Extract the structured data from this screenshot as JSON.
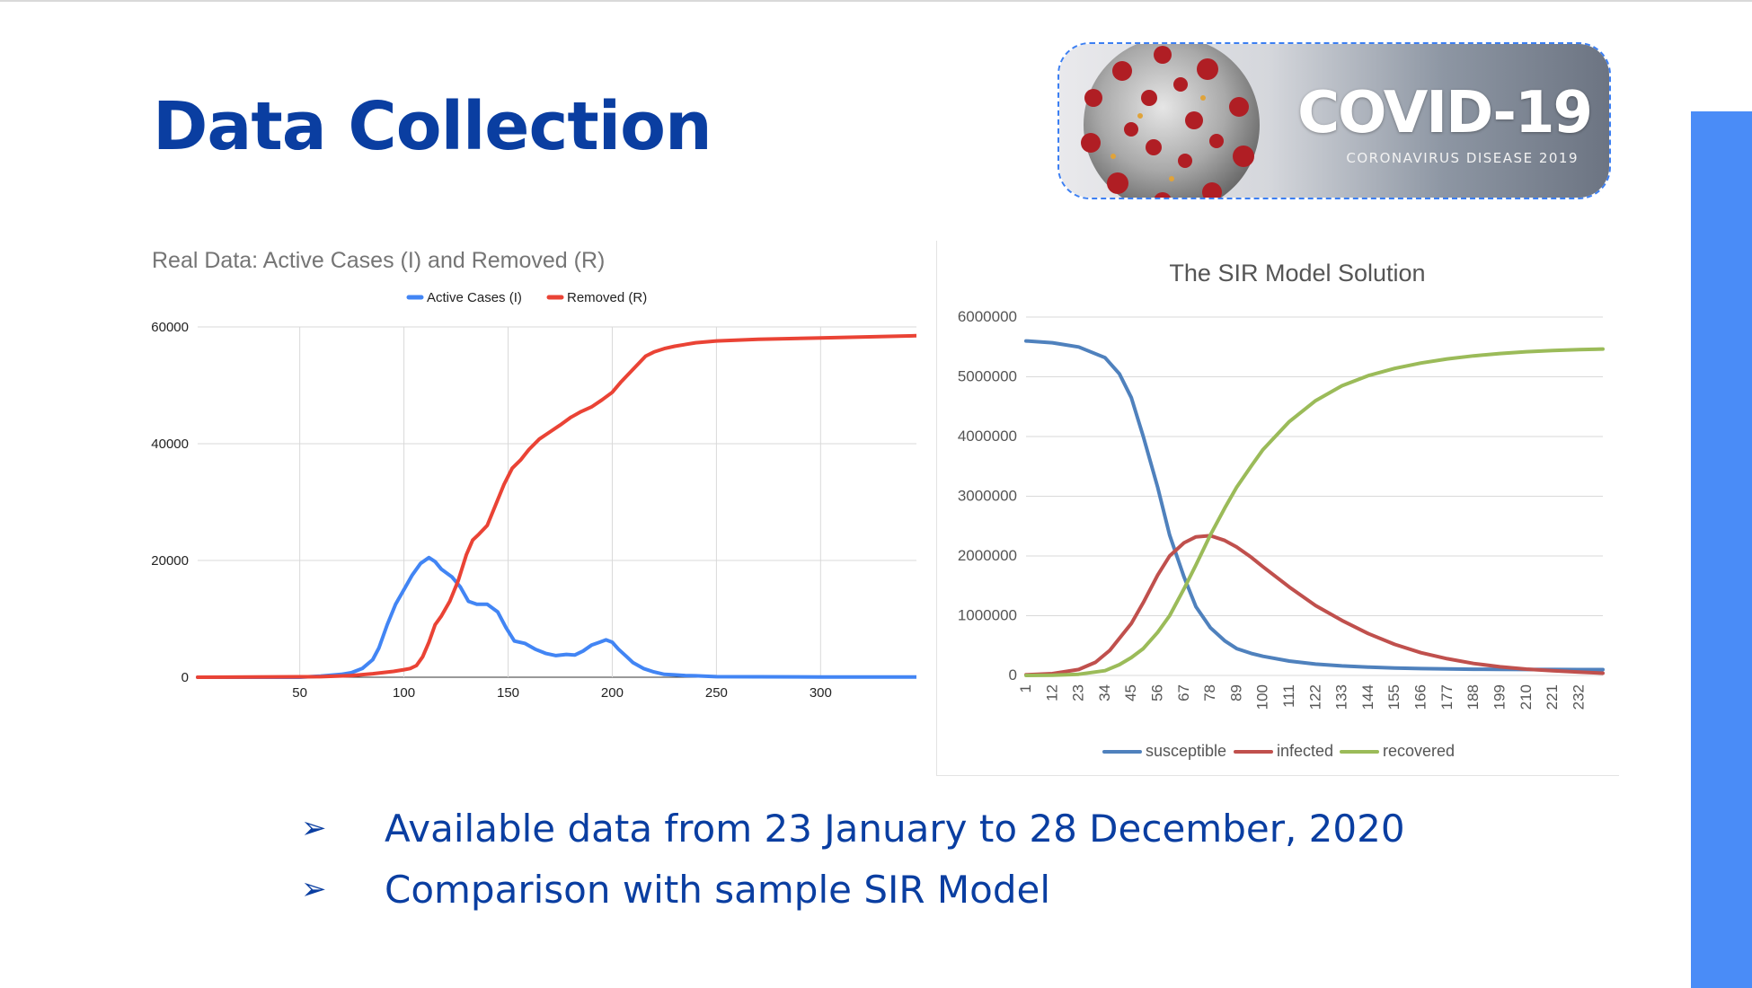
{
  "slide": {
    "title": "Data Collection",
    "banner": {
      "title": "COVID-19",
      "subtitle": "CORONAVIRUS DISEASE 2019"
    },
    "bullets": [
      {
        "marker": "➢",
        "text": "Available data from 23 January to 28 December, 2020"
      },
      {
        "marker": "➢",
        "text": "Comparison with sample SIR Model"
      }
    ],
    "colors": {
      "title": "#0a3ea1",
      "accent_bar": "#4a8cf7",
      "banner_border": "#3c7ff2"
    }
  },
  "chart_data": [
    {
      "type": "line",
      "title": "Real Data: Active Cases (I) and Removed (R)",
      "xlabel": "",
      "ylabel": "",
      "xlim": [
        1,
        346
      ],
      "ylim": [
        0,
        60000
      ],
      "xticks": [
        50,
        100,
        150,
        200,
        250,
        300
      ],
      "yticks": [
        0,
        20000,
        40000,
        60000
      ],
      "grid": true,
      "legend": "top-center",
      "series": [
        {
          "name": "Active Cases (I)",
          "color": "#4285f4",
          "points": [
            [
              1,
              0
            ],
            [
              50,
              0
            ],
            [
              60,
              200
            ],
            [
              70,
              500
            ],
            [
              75,
              800
            ],
            [
              80,
              1500
            ],
            [
              85,
              3000
            ],
            [
              88,
              5000
            ],
            [
              92,
              9000
            ],
            [
              96,
              12500
            ],
            [
              100,
              15000
            ],
            [
              104,
              17500
            ],
            [
              108,
              19500
            ],
            [
              112,
              20500
            ],
            [
              115,
              19800
            ],
            [
              118,
              18500
            ],
            [
              123,
              17200
            ],
            [
              127,
              15500
            ],
            [
              131,
              13000
            ],
            [
              135,
              12500
            ],
            [
              140,
              12500
            ],
            [
              145,
              11200
            ],
            [
              149,
              8500
            ],
            [
              153,
              6200
            ],
            [
              158,
              5800
            ],
            [
              163,
              4800
            ],
            [
              168,
              4100
            ],
            [
              173,
              3700
            ],
            [
              178,
              3900
            ],
            [
              182,
              3800
            ],
            [
              186,
              4500
            ],
            [
              190,
              5500
            ],
            [
              194,
              6000
            ],
            [
              197,
              6400
            ],
            [
              200,
              6000
            ],
            [
              203,
              4800
            ],
            [
              207,
              3500
            ],
            [
              210,
              2500
            ],
            [
              215,
              1500
            ],
            [
              220,
              900
            ],
            [
              225,
              500
            ],
            [
              230,
              400
            ],
            [
              235,
              300
            ],
            [
              240,
              250
            ],
            [
              250,
              100
            ],
            [
              300,
              50
            ],
            [
              346,
              50
            ]
          ]
        },
        {
          "name": "Removed (R)",
          "color": "#ea4335",
          "points": [
            [
              1,
              0
            ],
            [
              60,
              100
            ],
            [
              75,
              300
            ],
            [
              85,
              600
            ],
            [
              95,
              1000
            ],
            [
              100,
              1300
            ],
            [
              103,
              1500
            ],
            [
              106,
              2000
            ],
            [
              109,
              3500
            ],
            [
              112,
              6000
            ],
            [
              115,
              9000
            ],
            [
              118,
              10500
            ],
            [
              122,
              13000
            ],
            [
              126,
              16500
            ],
            [
              130,
              21000
            ],
            [
              133,
              23500
            ],
            [
              136,
              24500
            ],
            [
              140,
              26000
            ],
            [
              144,
              29500
            ],
            [
              148,
              33000
            ],
            [
              152,
              35800
            ],
            [
              156,
              37200
            ],
            [
              160,
              39000
            ],
            [
              165,
              40800
            ],
            [
              170,
              42000
            ],
            [
              175,
              43200
            ],
            [
              180,
              44500
            ],
            [
              185,
              45500
            ],
            [
              190,
              46300
            ],
            [
              195,
              47500
            ],
            [
              200,
              48800
            ],
            [
              204,
              50500
            ],
            [
              208,
              52000
            ],
            [
              212,
              53500
            ],
            [
              216,
              55000
            ],
            [
              220,
              55700
            ],
            [
              225,
              56300
            ],
            [
              230,
              56700
            ],
            [
              240,
              57300
            ],
            [
              250,
              57600
            ],
            [
              270,
              57900
            ],
            [
              300,
              58100
            ],
            [
              346,
              58500
            ]
          ]
        }
      ]
    },
    {
      "type": "line",
      "title": "The SIR Model Solution",
      "xlabel": "",
      "ylabel": "",
      "xlim": [
        1,
        242
      ],
      "ylim": [
        0,
        6000000
      ],
      "xticks": [
        1,
        12,
        23,
        34,
        45,
        56,
        67,
        78,
        89,
        100,
        111,
        122,
        133,
        144,
        155,
        166,
        177,
        188,
        199,
        210,
        221,
        232
      ],
      "yticks": [
        0,
        1000000,
        2000000,
        3000000,
        4000000,
        5000000,
        6000000
      ],
      "grid": true,
      "legend": "bottom-center",
      "series": [
        {
          "name": "susceptible",
          "color": "#4f81bd",
          "points": [
            [
              1,
              5600000
            ],
            [
              12,
              5570000
            ],
            [
              23,
              5500000
            ],
            [
              34,
              5320000
            ],
            [
              40,
              5050000
            ],
            [
              45,
              4650000
            ],
            [
              50,
              4000000
            ],
            [
              56,
              3150000
            ],
            [
              61,
              2350000
            ],
            [
              67,
              1650000
            ],
            [
              72,
              1150000
            ],
            [
              78,
              800000
            ],
            [
              84,
              580000
            ],
            [
              89,
              450000
            ],
            [
              95,
              370000
            ],
            [
              100,
              320000
            ],
            [
              111,
              240000
            ],
            [
              122,
              190000
            ],
            [
              133,
              160000
            ],
            [
              144,
              140000
            ],
            [
              155,
              125000
            ],
            [
              166,
              115000
            ],
            [
              177,
              108000
            ],
            [
              188,
              104000
            ],
            [
              199,
              101000
            ],
            [
              210,
              100000
            ],
            [
              221,
              99000
            ],
            [
              232,
              98000
            ],
            [
              242,
              97000
            ]
          ]
        },
        {
          "name": "infected",
          "color": "#c0504d",
          "points": [
            [
              1,
              10000
            ],
            [
              12,
              30000
            ],
            [
              23,
              100000
            ],
            [
              30,
              220000
            ],
            [
              36,
              420000
            ],
            [
              45,
              870000
            ],
            [
              50,
              1220000
            ],
            [
              56,
              1680000
            ],
            [
              61,
              2000000
            ],
            [
              67,
              2220000
            ],
            [
              72,
              2320000
            ],
            [
              78,
              2340000
            ],
            [
              84,
              2260000
            ],
            [
              89,
              2150000
            ],
            [
              95,
              1980000
            ],
            [
              100,
              1820000
            ],
            [
              111,
              1480000
            ],
            [
              122,
              1170000
            ],
            [
              133,
              920000
            ],
            [
              144,
              700000
            ],
            [
              155,
              520000
            ],
            [
              166,
              380000
            ],
            [
              177,
              280000
            ],
            [
              188,
              200000
            ],
            [
              199,
              145000
            ],
            [
              210,
              105000
            ],
            [
              221,
              78000
            ],
            [
              232,
              55000
            ],
            [
              242,
              38000
            ]
          ]
        },
        {
          "name": "recovered",
          "color": "#9bbb59",
          "points": [
            [
              1,
              0
            ],
            [
              12,
              5000
            ],
            [
              23,
              20000
            ],
            [
              34,
              80000
            ],
            [
              40,
              180000
            ],
            [
              45,
              300000
            ],
            [
              50,
              450000
            ],
            [
              56,
              720000
            ],
            [
              61,
              1000000
            ],
            [
              67,
              1450000
            ],
            [
              72,
              1850000
            ],
            [
              78,
              2350000
            ],
            [
              84,
              2800000
            ],
            [
              89,
              3150000
            ],
            [
              95,
              3500000
            ],
            [
              100,
              3780000
            ],
            [
              111,
              4250000
            ],
            [
              122,
              4600000
            ],
            [
              133,
              4850000
            ],
            [
              144,
              5020000
            ],
            [
              155,
              5140000
            ],
            [
              166,
              5230000
            ],
            [
              177,
              5300000
            ],
            [
              188,
              5350000
            ],
            [
              199,
              5390000
            ],
            [
              210,
              5420000
            ],
            [
              221,
              5440000
            ],
            [
              232,
              5455000
            ],
            [
              242,
              5465000
            ]
          ]
        }
      ]
    }
  ]
}
